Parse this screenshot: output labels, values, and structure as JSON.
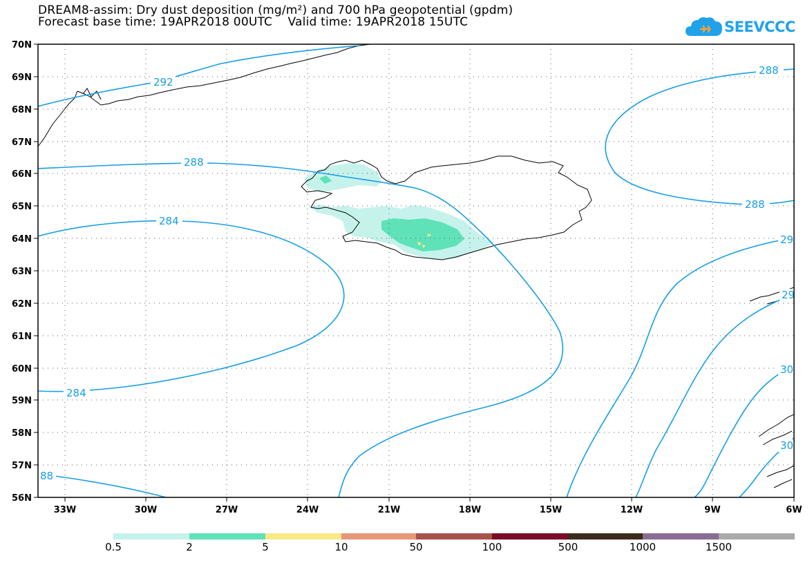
{
  "header": {
    "title_line1": "DREAM8-assim: Dry dust deposition (mg/m²) and 700 hPa geopotential (gpdm)",
    "title_line2": "Forecast base time: 19APR2018 00UTC    Valid time: 19APR2018 15UTC",
    "logo_text": "SEEVCCC"
  },
  "map": {
    "lat_labels": [
      "70N",
      "69N",
      "68N",
      "67N",
      "66N",
      "65N",
      "64N",
      "63N",
      "62N",
      "61N",
      "60N",
      "59N",
      "58N",
      "57N",
      "56N"
    ],
    "lon_labels": [
      "33W",
      "30W",
      "27W",
      "24W",
      "21W",
      "18W",
      "15W",
      "12W",
      "9W",
      "6W"
    ],
    "contour_labels": {
      "c292_top": "292",
      "c288_mid": "288",
      "c284": "284",
      "c284_low": "284",
      "c288_bl": "88",
      "c288_ne": "288",
      "c288_e": "288",
      "c29_right": "29",
      "c29_right2": "29",
      "c30_right": "30",
      "c30_right2": "30"
    },
    "grid": "dotted",
    "contour_color": "#169ee6"
  },
  "legend": {
    "colors": [
      "#c6f2ec",
      "#5fe2b8",
      "#f9e987",
      "#e8967a",
      "#a8524c",
      "#7c0c25",
      "#3a2b1c",
      "#8b6d93",
      "#a9a9a9"
    ],
    "labels": [
      "0.5",
      "2",
      "5",
      "10",
      "50",
      "100",
      "500",
      "1000",
      "1500"
    ]
  }
}
